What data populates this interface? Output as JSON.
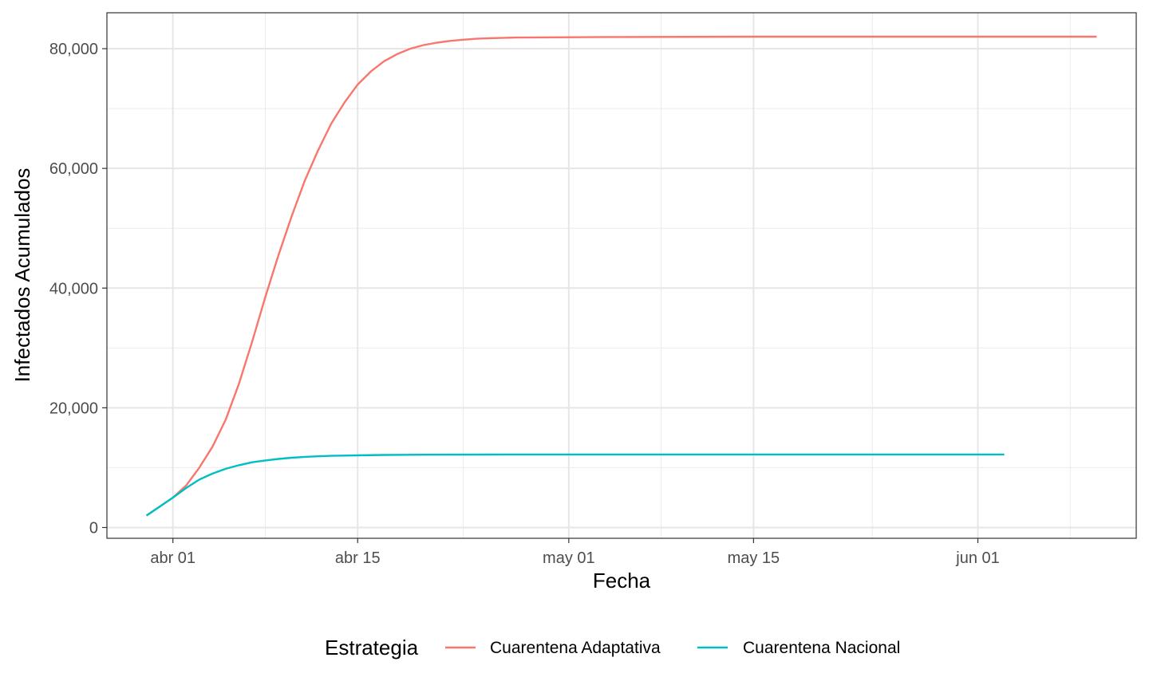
{
  "chart_data": {
    "type": "line",
    "title": "",
    "xlabel": "Fecha",
    "ylabel": "Infectados Acumulados",
    "x_ticks": [
      "abr 01",
      "abr 15",
      "may 01",
      "may 15",
      "jun 01"
    ],
    "x_tick_dates": [
      "2020-04-01",
      "2020-04-15",
      "2020-05-01",
      "2020-05-15",
      "2020-06-01"
    ],
    "x_minor_dates": [
      "2020-04-08",
      "2020-04-23",
      "2020-05-08",
      "2020-05-24",
      "2020-06-08"
    ],
    "xlim": [
      "2020-03-27",
      "2020-06-13"
    ],
    "y_ticks": [
      "0",
      "20,000",
      "40,000",
      "60,000",
      "80,000"
    ],
    "y_tick_values": [
      0,
      20000,
      40000,
      60000,
      80000
    ],
    "ylim": [
      -1800,
      86000
    ],
    "grid": true,
    "legend": {
      "title": "Estrategia",
      "position": "bottom"
    },
    "series": [
      {
        "name": "Cuarentena Adaptativa",
        "color": "#F8766D",
        "points": [
          [
            "2020-03-30",
            2000
          ],
          [
            "2020-03-31",
            3500
          ],
          [
            "2020-04-01",
            5000
          ],
          [
            "2020-04-02",
            7000
          ],
          [
            "2020-04-03",
            10000
          ],
          [
            "2020-04-04",
            13500
          ],
          [
            "2020-04-05",
            18000
          ],
          [
            "2020-04-06",
            24000
          ],
          [
            "2020-04-07",
            31000
          ],
          [
            "2020-04-08",
            38500
          ],
          [
            "2020-04-09",
            45500
          ],
          [
            "2020-04-10",
            52000
          ],
          [
            "2020-04-11",
            58000
          ],
          [
            "2020-04-12",
            63000
          ],
          [
            "2020-04-13",
            67500
          ],
          [
            "2020-04-14",
            71000
          ],
          [
            "2020-04-15",
            74000
          ],
          [
            "2020-04-16",
            76200
          ],
          [
            "2020-04-17",
            77900
          ],
          [
            "2020-04-18",
            79100
          ],
          [
            "2020-04-19",
            80000
          ],
          [
            "2020-04-20",
            80600
          ],
          [
            "2020-04-21",
            81000
          ],
          [
            "2020-04-22",
            81300
          ],
          [
            "2020-04-23",
            81500
          ],
          [
            "2020-04-24",
            81650
          ],
          [
            "2020-04-25",
            81750
          ],
          [
            "2020-04-27",
            81850
          ],
          [
            "2020-04-30",
            81900
          ],
          [
            "2020-05-05",
            81950
          ],
          [
            "2020-05-15",
            82000
          ],
          [
            "2020-06-10",
            82000
          ]
        ]
      },
      {
        "name": "Cuarentena Nacional",
        "color": "#00BFC4",
        "points": [
          [
            "2020-03-30",
            2000
          ],
          [
            "2020-03-31",
            3500
          ],
          [
            "2020-04-01",
            5000
          ],
          [
            "2020-04-02",
            6600
          ],
          [
            "2020-04-03",
            8000
          ],
          [
            "2020-04-04",
            9000
          ],
          [
            "2020-04-05",
            9800
          ],
          [
            "2020-04-06",
            10400
          ],
          [
            "2020-04-07",
            10900
          ],
          [
            "2020-04-08",
            11200
          ],
          [
            "2020-04-09",
            11450
          ],
          [
            "2020-04-10",
            11650
          ],
          [
            "2020-04-11",
            11800
          ],
          [
            "2020-04-12",
            11900
          ],
          [
            "2020-04-13",
            11970
          ],
          [
            "2020-04-14",
            12020
          ],
          [
            "2020-04-15",
            12060
          ],
          [
            "2020-04-17",
            12120
          ],
          [
            "2020-04-20",
            12160
          ],
          [
            "2020-04-25",
            12190
          ],
          [
            "2020-05-01",
            12200
          ],
          [
            "2020-06-03",
            12200
          ]
        ]
      }
    ]
  }
}
